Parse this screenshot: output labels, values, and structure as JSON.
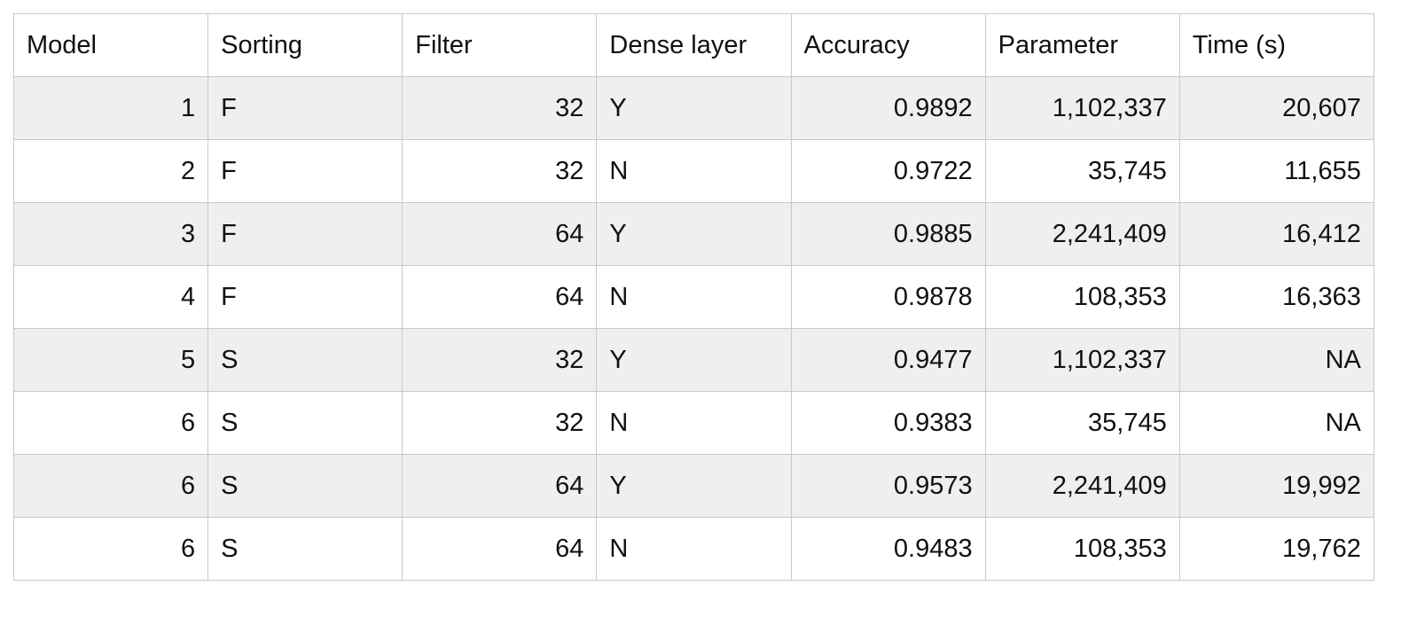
{
  "chart_data": {
    "type": "table",
    "columns": [
      "Model",
      "Sorting",
      "Filter",
      "Dense layer",
      "Accuracy",
      "Parameter",
      "Time (s)"
    ],
    "align": [
      "right",
      "left",
      "right",
      "left",
      "right",
      "right",
      "right"
    ],
    "rows": [
      [
        "1",
        "F",
        "32",
        "Y",
        "0.9892",
        "1,102,337",
        "20,607"
      ],
      [
        "2",
        "F",
        "32",
        "N",
        "0.9722",
        "35,745",
        "11,655"
      ],
      [
        "3",
        "F",
        "64",
        "Y",
        "0.9885",
        "2,241,409",
        "16,412"
      ],
      [
        "4",
        "F",
        "64",
        "N",
        "0.9878",
        "108,353",
        "16,363"
      ],
      [
        "5",
        "S",
        "32",
        "Y",
        "0.9477",
        "1,102,337",
        "NA"
      ],
      [
        "6",
        "S",
        "32",
        "N",
        "0.9383",
        "35,745",
        "NA"
      ],
      [
        "6",
        "S",
        "64",
        "Y",
        "0.9573",
        "2,241,409",
        "19,992"
      ],
      [
        "6",
        "S",
        "64",
        "N",
        "0.9483",
        "108,353",
        "19,762"
      ]
    ]
  },
  "colors": {
    "border": "#c8c8c8",
    "row_shaded": "#efefef",
    "row_plain": "#ffffff",
    "text": "#111111"
  }
}
